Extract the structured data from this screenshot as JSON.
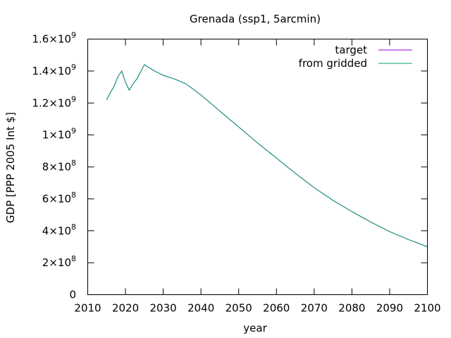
{
  "chart_data": {
    "type": "line",
    "title": "Grenada (ssp1, 5arcmin)",
    "xlabel": "year",
    "ylabel": "GDP [PPP 2005 Int $]",
    "xlim": [
      2010,
      2100
    ],
    "ylim": [
      0,
      1600000000
    ],
    "x_ticks": [
      2010,
      2020,
      2030,
      2040,
      2050,
      2060,
      2070,
      2080,
      2090,
      2100
    ],
    "x_tick_labels": [
      "2010",
      "2020",
      "2030",
      "2040",
      "2050",
      "2060",
      "2070",
      "2080",
      "2090",
      "2100"
    ],
    "y_ticks": [
      {
        "value": 0,
        "mantissa": "0",
        "exponent": ""
      },
      {
        "value": 200000000,
        "mantissa": "2×10",
        "exponent": "8"
      },
      {
        "value": 400000000,
        "mantissa": "4×10",
        "exponent": "8"
      },
      {
        "value": 600000000,
        "mantissa": "6×10",
        "exponent": "8"
      },
      {
        "value": 800000000,
        "mantissa": "8×10",
        "exponent": "8"
      },
      {
        "value": 1000000000,
        "mantissa": "1×10",
        "exponent": "9"
      },
      {
        "value": 1200000000,
        "mantissa": "1.2×10",
        "exponent": "9"
      },
      {
        "value": 1400000000,
        "mantissa": "1.4×10",
        "exponent": "9"
      },
      {
        "value": 1600000000,
        "mantissa": "1.6×10",
        "exponent": "9"
      }
    ],
    "grid": false,
    "legend_position": "top-right",
    "x": [
      2015,
      2016,
      2017,
      2018,
      2019,
      2020,
      2021,
      2022,
      2023,
      2024,
      2025,
      2026,
      2027,
      2028,
      2029,
      2030,
      2033,
      2036,
      2040,
      2045,
      2050,
      2055,
      2060,
      2065,
      2070,
      2075,
      2080,
      2085,
      2090,
      2095,
      2100
    ],
    "series": [
      {
        "name": "target",
        "color": "#9400d3",
        "values": [
          1220000000,
          1265000000,
          1305000000,
          1365000000,
          1400000000,
          1330000000,
          1280000000,
          1320000000,
          1350000000,
          1395000000,
          1440000000,
          1425000000,
          1410000000,
          1397000000,
          1385000000,
          1373000000,
          1350000000,
          1320000000,
          1250000000,
          1150000000,
          1050000000,
          950000000,
          855000000,
          760000000,
          670000000,
          590000000,
          520000000,
          455000000,
          395000000,
          345000000,
          300000000
        ]
      },
      {
        "name": "from gridded",
        "color": "#009e73",
        "values": [
          1220000000,
          1265000000,
          1305000000,
          1365000000,
          1400000000,
          1330000000,
          1280000000,
          1320000000,
          1350000000,
          1395000000,
          1440000000,
          1425000000,
          1410000000,
          1397000000,
          1385000000,
          1373000000,
          1350000000,
          1320000000,
          1250000000,
          1150000000,
          1050000000,
          950000000,
          855000000,
          760000000,
          670000000,
          590000000,
          520000000,
          455000000,
          395000000,
          345000000,
          300000000
        ]
      }
    ]
  }
}
